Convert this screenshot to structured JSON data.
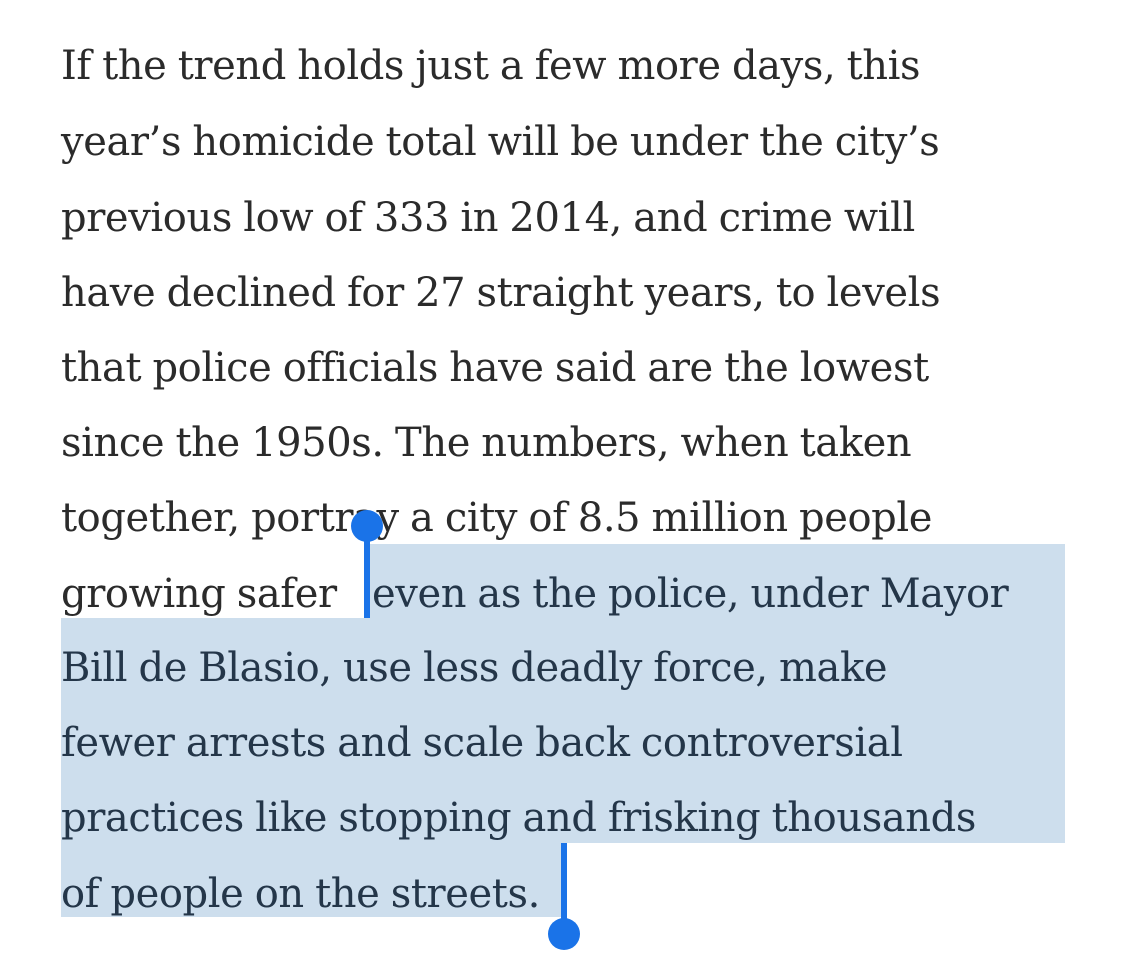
{
  "article": {
    "paragraph_lines": [
      "If the trend holds just a few more days, this",
      "year’s homicide total will be under the city’s",
      "previous low of 333 in 2014, and crime will",
      "have declined for 27 straight years, to levels",
      "that police officials have said are the lowest",
      "since the 1950s. The numbers, when taken",
      "together, portray a city of 8.5 million people",
      "growing safer ",
      "even as the police, under Mayor",
      "Bill de Blasio, use less deadly force, make",
      "fewer arrests and scale back controversial",
      "practices like stopping and frisking thousands",
      "of people on the streets."
    ]
  },
  "selection": {
    "highlight_color": "#cddeed",
    "handle_color": "#1a73e8",
    "text_color": "#243649"
  }
}
